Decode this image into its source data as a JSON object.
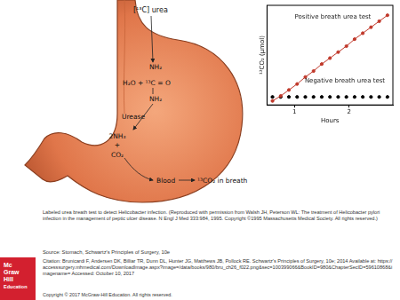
{
  "diagram": {
    "substrate": "[¹³C] urea",
    "amine_top": "NH₂",
    "reaction": "H₂O + ¹³C = O",
    "amine_bottom": "NH₂",
    "enzyme": "Urease",
    "product_1": "2NH₃",
    "plus": "+",
    "product_2": "CO₂",
    "blood": "Blood",
    "breath": "¹³CO₂ in breath"
  },
  "chart_data": {
    "type": "line",
    "xlabel": "Hours",
    "ylabel": "¹³CO₂ (µmol)",
    "x": [
      0.6,
      0.75,
      0.9,
      1.05,
      1.2,
      1.35,
      1.5,
      1.65,
      1.8,
      1.95,
      2.1,
      2.25,
      2.4,
      2.55,
      2.7
    ],
    "series": [
      {
        "name": "Positive breath urea test",
        "color": "#c0392b",
        "marker": "circle",
        "line_style": "solid",
        "values": [
          0.4,
          0.9,
          1.5,
          2.1,
          2.8,
          3.4,
          4.1,
          4.7,
          5.3,
          5.9,
          6.6,
          7.2,
          7.8,
          8.4,
          9.0
        ]
      },
      {
        "name": "Negative breath urea test",
        "color": "#000000",
        "marker": "circle",
        "line_style": "none",
        "values": [
          0.8,
          0.8,
          0.8,
          0.8,
          0.8,
          0.8,
          0.8,
          0.8,
          0.8,
          0.8,
          0.8,
          0.8,
          0.8,
          0.8,
          0.8
        ]
      }
    ],
    "xlim": [
      0.5,
      2.8
    ],
    "xticks": [
      1,
      2
    ],
    "ylim": [
      0,
      10
    ],
    "grid": false,
    "tick_labels": "x"
  },
  "caption": "Labeled urea breath test to detect Helicobacter infection. (Reproduced with permission from Walsh JH, Peterson WL: The treatment of Helicobacter pylori infection in the management of peptic ulcer disease. N Engl J Med 333:984, 1995. Copyright ©1995 Massachusetts Medical Society. All rights reserved.)",
  "logo": [
    "Mc",
    "Graw",
    "Hill",
    "Education"
  ],
  "source": "Source: Stomach, Schwartz's Principles of Surgery, 10e",
  "citation": "Citation: Brunicardi F, Andersen DK, Billiar TR, Dunn DL, Hunter JG, Matthews JB, Pollock RE. Schwartz's Principles of Surgery, 10e; 2014 Available at: https://accesssurgery.mhmedical.com/DownloadImage.aspx?image=/data/books/980/bru_ch26_f022.png&sec=100399066&BookID=980&ChapterSecID=59610868&imagename= Accessed: October 10, 2017",
  "copyright": "Copyright © 2017 McGraw-Hill Education. All rights reserved."
}
